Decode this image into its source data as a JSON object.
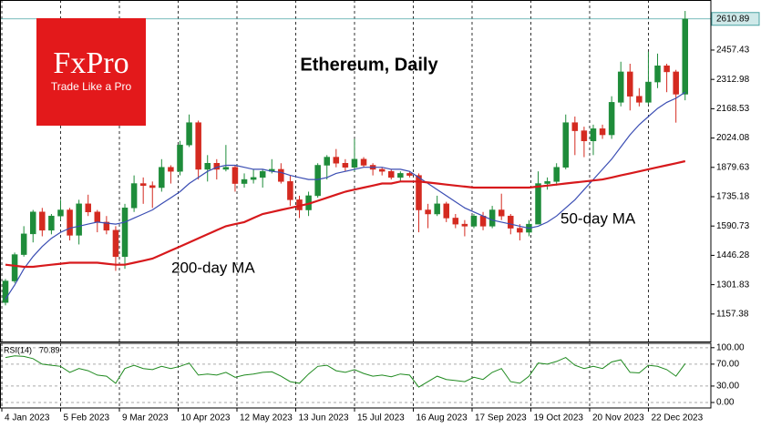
{
  "brand": {
    "name": "FxPro",
    "tagline": "Trade Like a Pro"
  },
  "chart_data": {
    "type": "candlestick",
    "title": "Ethereum, Daily",
    "dates": [
      "2023-01-04",
      "2023-01-09",
      "2023-01-14",
      "2023-01-19",
      "2023-01-24",
      "2023-01-29",
      "2023-02-03",
      "2023-02-08",
      "2023-02-13",
      "2023-02-18",
      "2023-02-23",
      "2023-02-28",
      "2023-03-05",
      "2023-03-10",
      "2023-03-15",
      "2023-03-20",
      "2023-03-25",
      "2023-03-30",
      "2023-04-04",
      "2023-04-09",
      "2023-04-14",
      "2023-04-19",
      "2023-04-24",
      "2023-04-29",
      "2023-05-04",
      "2023-05-09",
      "2023-05-14",
      "2023-05-19",
      "2023-05-24",
      "2023-05-29",
      "2023-06-03",
      "2023-06-08",
      "2023-06-13",
      "2023-06-18",
      "2023-06-23",
      "2023-06-28",
      "2023-07-03",
      "2023-07-08",
      "2023-07-13",
      "2023-07-18",
      "2023-07-23",
      "2023-07-28",
      "2023-08-02",
      "2023-08-07",
      "2023-08-12",
      "2023-08-17",
      "2023-08-22",
      "2023-08-27",
      "2023-09-01",
      "2023-09-06",
      "2023-09-11",
      "2023-09-16",
      "2023-09-21",
      "2023-09-26",
      "2023-10-01",
      "2023-10-06",
      "2023-10-11",
      "2023-10-16",
      "2023-10-21",
      "2023-10-26",
      "2023-10-31",
      "2023-11-05",
      "2023-11-10",
      "2023-11-15",
      "2023-11-20",
      "2023-11-25",
      "2023-11-30",
      "2023-12-05",
      "2023-12-10",
      "2023-12-15",
      "2023-12-20",
      "2023-12-25",
      "2023-12-30",
      "2024-01-04",
      "2024-01-09"
    ],
    "open": [
      1214,
      1320,
      1450,
      1552,
      1660,
      1570,
      1640,
      1670,
      1545,
      1700,
      1660,
      1610,
      1570,
      1440,
      1680,
      1800,
      1790,
      1780,
      1880,
      1860,
      1990,
      2100,
      1870,
      1900,
      1870,
      1880,
      1800,
      1820,
      1830,
      1860,
      1870,
      1810,
      1720,
      1670,
      1740,
      1890,
      1930,
      1900,
      1880,
      1920,
      1890,
      1870,
      1860,
      1830,
      1850,
      1840,
      1670,
      1650,
      1700,
      1630,
      1600,
      1590,
      1640,
      1590,
      1670,
      1640,
      1580,
      1560,
      1600,
      1800,
      1810,
      1880,
      2100,
      2060,
      2010,
      2070,
      2040,
      2200,
      2350,
      2230,
      2200,
      2300,
      2380,
      2350,
      2240
    ],
    "high": [
      1330,
      1460,
      1590,
      1670,
      1680,
      1650,
      1720,
      1680,
      1720,
      1745,
      1670,
      1640,
      1590,
      1700,
      1840,
      1830,
      1810,
      1920,
      1890,
      2010,
      2140,
      2110,
      1940,
      1920,
      1990,
      1890,
      1850,
      1870,
      1870,
      1920,
      1900,
      1840,
      1740,
      1760,
      1900,
      1940,
      1970,
      1920,
      2020,
      1930,
      1900,
      1880,
      1870,
      1860,
      1860,
      1850,
      1700,
      1740,
      1710,
      1650,
      1620,
      1650,
      1660,
      1690,
      1750,
      1650,
      1600,
      1620,
      1860,
      1830,
      1900,
      2140,
      2130,
      2080,
      2090,
      2090,
      2230,
      2400,
      2390,
      2270,
      2450,
      2440,
      2390,
      2360,
      2650
    ],
    "low": [
      1200,
      1310,
      1440,
      1510,
      1540,
      1550,
      1620,
      1520,
      1500,
      1640,
      1560,
      1550,
      1370,
      1380,
      1660,
      1700,
      1680,
      1760,
      1800,
      1840,
      1980,
      1820,
      1810,
      1820,
      1860,
      1760,
      1780,
      1800,
      1780,
      1850,
      1800,
      1690,
      1630,
      1640,
      1730,
      1820,
      1880,
      1860,
      1860,
      1880,
      1840,
      1840,
      1820,
      1810,
      1830,
      1560,
      1580,
      1640,
      1610,
      1580,
      1540,
      1580,
      1570,
      1580,
      1620,
      1550,
      1520,
      1540,
      1600,
      1770,
      1790,
      1870,
      1940,
      1930,
      1940,
      2020,
      2020,
      2180,
      2160,
      2180,
      2190,
      2270,
      2250,
      2100,
      2210
    ],
    "close": [
      1320,
      1450,
      1552,
      1660,
      1570,
      1640,
      1670,
      1545,
      1700,
      1660,
      1610,
      1570,
      1440,
      1680,
      1800,
      1790,
      1780,
      1880,
      1860,
      1990,
      2100,
      1870,
      1900,
      1870,
      1880,
      1800,
      1820,
      1830,
      1860,
      1870,
      1810,
      1720,
      1670,
      1740,
      1890,
      1930,
      1900,
      1880,
      1920,
      1890,
      1870,
      1860,
      1830,
      1850,
      1840,
      1670,
      1650,
      1700,
      1630,
      1600,
      1590,
      1640,
      1590,
      1670,
      1640,
      1580,
      1560,
      1600,
      1800,
      1810,
      1880,
      2100,
      2060,
      2010,
      2070,
      2040,
      2200,
      2350,
      2230,
      2200,
      2300,
      2380,
      2350,
      2240,
      2610.89
    ],
    "up_color": "#1e8c3a",
    "down_color": "#d42a20",
    "series": [
      {
        "name": "50-day MA",
        "color": "#3a4db3",
        "values": [
          1230,
          1300,
          1380,
          1440,
          1490,
          1530,
          1560,
          1580,
          1590,
          1600,
          1610,
          1605,
          1600,
          1610,
          1630,
          1650,
          1670,
          1700,
          1730,
          1760,
          1800,
          1830,
          1860,
          1880,
          1890,
          1890,
          1880,
          1870,
          1870,
          1860,
          1855,
          1840,
          1830,
          1820,
          1820,
          1830,
          1850,
          1860,
          1870,
          1880,
          1880,
          1880,
          1870,
          1870,
          1860,
          1830,
          1800,
          1770,
          1740,
          1710,
          1680,
          1660,
          1640,
          1620,
          1610,
          1600,
          1590,
          1580,
          1590,
          1610,
          1640,
          1680,
          1720,
          1770,
          1820,
          1870,
          1920,
          1980,
          2040,
          2090,
          2130,
          2170,
          2200,
          2220,
          2250
        ]
      },
      {
        "name": "200-day MA",
        "color": "#d7191c",
        "values": [
          1400,
          1395,
          1390,
          1390,
          1395,
          1400,
          1405,
          1410,
          1410,
          1410,
          1410,
          1405,
          1400,
          1400,
          1410,
          1420,
          1430,
          1450,
          1470,
          1490,
          1510,
          1530,
          1550,
          1570,
          1590,
          1600,
          1610,
          1630,
          1650,
          1660,
          1670,
          1680,
          1690,
          1700,
          1715,
          1730,
          1745,
          1760,
          1770,
          1780,
          1790,
          1800,
          1800,
          1810,
          1810,
          1810,
          1805,
          1800,
          1795,
          1790,
          1785,
          1780,
          1780,
          1780,
          1780,
          1780,
          1780,
          1780,
          1785,
          1790,
          1795,
          1800,
          1805,
          1810,
          1815,
          1820,
          1830,
          1840,
          1850,
          1860,
          1870,
          1880,
          1890,
          1900,
          1910
        ]
      }
    ],
    "ylim": [
      1022,
      2704
    ],
    "yticks": [
      1157.38,
      1301.83,
      1446.28,
      1590.73,
      1735.18,
      1879.63,
      2024.08,
      2168.53,
      2312.98,
      2457.43
    ],
    "xlim": [
      "2023-01-03",
      "2024-01-25"
    ],
    "xticks": [
      {
        "value": "2023-01-04",
        "label": "4 Jan 2023"
      },
      {
        "value": "2023-02-05",
        "label": "5 Feb 2023"
      },
      {
        "value": "2023-03-09",
        "label": "9 Mar 2023"
      },
      {
        "value": "2023-04-10",
        "label": "10 Apr 2023"
      },
      {
        "value": "2023-05-12",
        "label": "12 May 2023"
      },
      {
        "value": "2023-06-13",
        "label": "13 Jun 2023"
      },
      {
        "value": "2023-07-15",
        "label": "15 Jul 2023"
      },
      {
        "value": "2023-08-16",
        "label": "16 Aug 2023"
      },
      {
        "value": "2023-09-17",
        "label": "17 Sep 2023"
      },
      {
        "value": "2023-10-19",
        "label": "19 Oct 2023"
      },
      {
        "value": "2023-11-20",
        "label": "20 Nov 2023"
      },
      {
        "value": "2023-12-22",
        "label": "22 Dec 2023"
      }
    ],
    "grid": true,
    "indicator": {
      "type": "line",
      "name": "RSI(14)",
      "color": "#1f8a1f",
      "values": [
        82,
        85,
        84,
        80,
        70,
        68,
        66,
        55,
        62,
        58,
        50,
        48,
        35,
        62,
        68,
        62,
        60,
        66,
        62,
        66,
        72,
        50,
        52,
        50,
        55,
        46,
        50,
        52,
        55,
        56,
        48,
        38,
        35,
        52,
        66,
        68,
        58,
        55,
        60,
        53,
        48,
        50,
        47,
        52,
        50,
        28,
        38,
        48,
        42,
        40,
        38,
        46,
        42,
        55,
        62,
        38,
        35,
        48,
        72,
        70,
        75,
        82,
        68,
        62,
        66,
        62,
        74,
        78,
        55,
        54,
        68,
        66,
        60,
        48,
        70.89
      ],
      "ylim": [
        -10,
        108
      ],
      "yticks": [
        {
          "value": 0,
          "label": "0.00"
        },
        {
          "value": 30,
          "label": "30.00"
        },
        {
          "value": 70,
          "label": "70.00"
        },
        {
          "value": 100,
          "label": "100.00"
        }
      ]
    }
  }
}
